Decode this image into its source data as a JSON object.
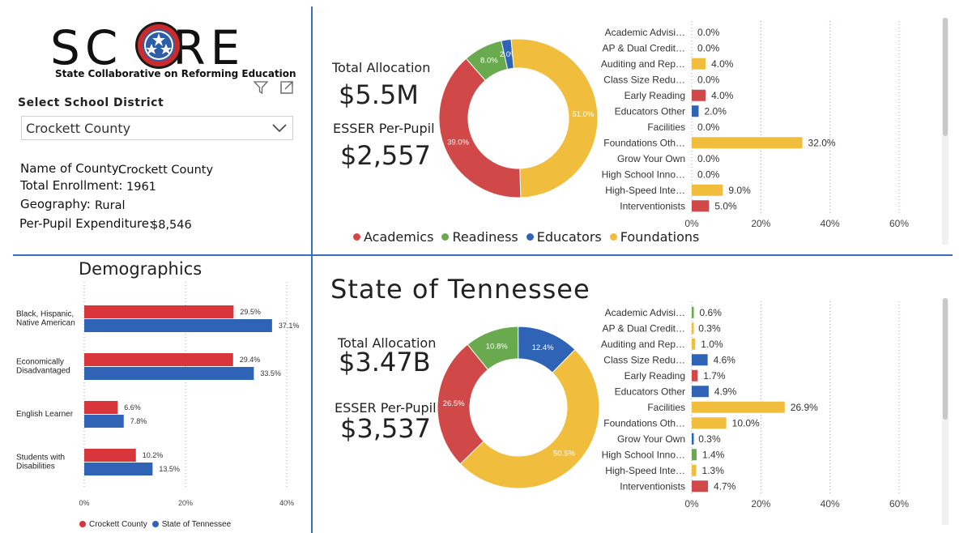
{
  "logo": {
    "letters_left": "SC",
    "letters_right": "RE",
    "subtitle": "State Collaborative on Reforming Education"
  },
  "district_select": {
    "label": "Select School District",
    "value": "Crockett County"
  },
  "county_info": {
    "name_label": "Name of County:",
    "name_value": "Crockett County",
    "enrollment_label": "Total Enrollment:",
    "enrollment_value": "1961",
    "geography_label": "Geography:",
    "geography_value": "Rural",
    "expenditure_label": "Per-Pupil Expenditure:",
    "expenditure_value": "$8,546"
  },
  "county_kpis": {
    "allocation_label": "Total Allocation",
    "allocation_value": "$5.5M",
    "per_pupil_label": "ESSER Per-Pupil",
    "per_pupil_value": "$2,557"
  },
  "state_section": {
    "title": "State of Tennessee",
    "allocation_label": "Total Allocation",
    "allocation_value": "$3.47B",
    "per_pupil_label": "ESSER Per-Pupil",
    "per_pupil_value": "$3,537"
  },
  "donut_legend": [
    {
      "name": "Academics",
      "color": "#d04848"
    },
    {
      "name": "Readiness",
      "color": "#6aaa4f"
    },
    {
      "name": "Educators",
      "color": "#2f63b5"
    },
    {
      "name": "Foundations",
      "color": "#f0be3c"
    }
  ],
  "demographics": {
    "title": "Demographics",
    "legend": [
      {
        "name": "Crockett County",
        "color": "#d9363b"
      },
      {
        "name": "State of Tennessee",
        "color": "#2f63b5"
      }
    ]
  },
  "chart_data": [
    {
      "type": "pie",
      "id": "county-donut",
      "categories": [
        "Academics",
        "Readiness",
        "Educators",
        "Foundations"
      ],
      "values": [
        39.0,
        8.0,
        2.0,
        51.0
      ],
      "labels": [
        "39.0%",
        "8.0%",
        "2.0%",
        "51.0%"
      ]
    },
    {
      "type": "bar",
      "id": "county-bars",
      "categories": [
        "Academic Advisi…",
        "AP & Dual Credit…",
        "Auditing and Rep…",
        "Class Size Redu…",
        "Early Reading",
        "Educators Other",
        "Facilities",
        "Foundations Oth…",
        "Grow Your Own",
        "High School Inno…",
        "High-Speed Inte…",
        "Interventionists"
      ],
      "values": [
        0.0,
        0.0,
        4.0,
        0.0,
        4.0,
        2.0,
        0.0,
        32.0,
        0.0,
        0.0,
        9.0,
        5.0
      ],
      "value_labels": [
        "0.0%",
        "0.0%",
        "4.0%",
        "0.0%",
        "4.0%",
        "2.0%",
        "0.0%",
        "32.0%",
        "0.0%",
        "0.0%",
        "9.0%",
        "5.0%"
      ],
      "colors": [
        "#6aaa4f",
        "#f0be3c",
        "#f0be3c",
        "#2f63b5",
        "#d04848",
        "#2f63b5",
        "#f0be3c",
        "#f0be3c",
        "#2f63b5",
        "#6aaa4f",
        "#f0be3c",
        "#d04848"
      ],
      "ticks": [
        "0%",
        "20%",
        "40%",
        "60%"
      ],
      "xlim": [
        0,
        60
      ]
    },
    {
      "type": "pie",
      "id": "state-donut",
      "categories": [
        "Academics",
        "Readiness",
        "Educators",
        "Foundations"
      ],
      "values": [
        26.5,
        10.8,
        12.4,
        50.5
      ],
      "labels": [
        "26.5%",
        "10.8%",
        "12.4%",
        "50.5%"
      ]
    },
    {
      "type": "bar",
      "id": "state-bars",
      "categories": [
        "Academic Advisi…",
        "AP & Dual Credit…",
        "Auditing and Rep…",
        "Class Size Redu…",
        "Early Reading",
        "Educators Other",
        "Facilities",
        "Foundations Oth…",
        "Grow Your Own",
        "High School Inno…",
        "High-Speed Inte…",
        "Interventionists"
      ],
      "values": [
        0.6,
        0.3,
        1.0,
        4.6,
        1.7,
        4.9,
        26.9,
        10.0,
        0.3,
        1.4,
        1.3,
        4.7
      ],
      "value_labels": [
        "0.6%",
        "0.3%",
        "1.0%",
        "4.6%",
        "1.7%",
        "4.9%",
        "26.9%",
        "10.0%",
        "0.3%",
        "1.4%",
        "1.3%",
        "4.7%"
      ],
      "colors": [
        "#6aaa4f",
        "#f0be3c",
        "#f0be3c",
        "#2f63b5",
        "#d04848",
        "#2f63b5",
        "#f0be3c",
        "#f0be3c",
        "#2f63b5",
        "#6aaa4f",
        "#f0be3c",
        "#d04848"
      ],
      "ticks": [
        "0%",
        "20%",
        "40%",
        "60%"
      ],
      "xlim": [
        0,
        60
      ]
    },
    {
      "type": "bar",
      "id": "demographics-bars",
      "categories": [
        "Black, Hispanic,\nNative American",
        "Economically\nDisadvantaged",
        "English Learner",
        "Students with\nDisabilities"
      ],
      "series": [
        {
          "name": "Crockett County",
          "values": [
            29.5,
            29.4,
            6.6,
            10.2
          ],
          "labels": [
            "29.5%",
            "29.4%",
            "6.6%",
            "10.2%"
          ]
        },
        {
          "name": "State of Tennessee",
          "values": [
            37.1,
            33.5,
            7.8,
            13.5
          ],
          "labels": [
            "37.1%",
            "33.5%",
            "7.8%",
            "13.5%"
          ]
        }
      ],
      "ticks": [
        "0%",
        "20%",
        "40%"
      ],
      "xlim": [
        0,
        40
      ]
    }
  ]
}
